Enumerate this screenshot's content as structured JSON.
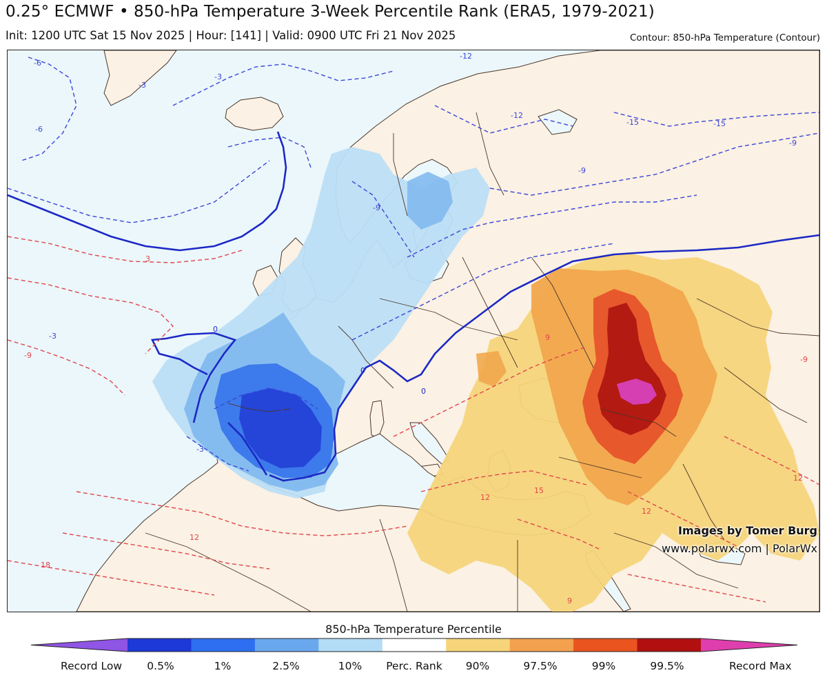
{
  "header": {
    "title": "0.25° ECMWF • 850-hPa Temperature 3-Week Percentile Rank (ERA5, 1979-2021)",
    "subtitle": "Init: 1200 UTC Sat 15 Nov 2025 | Hour: [141] | Valid: 0900 UTC Fri 21 Nov 2025",
    "contour_note": "Contour: 850-hPa Temperature (Contour)"
  },
  "credit": {
    "line1": "Images by Tomer Burg",
    "line2": "www.polarwx.com | PolarWx"
  },
  "colorbar": {
    "title": "850-hPa Temperature Percentile",
    "colors": [
      "#8f55e4",
      "#1d39d8",
      "#2e6ff2",
      "#6aa8ee",
      "#b3dcf6",
      "#ffffff",
      "#f6d47a",
      "#f3a14f",
      "#e9541f",
      "#b21010",
      "#df3fae"
    ],
    "labels": [
      "Record Low",
      "0.5%",
      "1%",
      "2.5%",
      "10%",
      "Perc. Rank",
      "90%",
      "97.5%",
      "99%",
      "99.5%",
      "Record Max"
    ]
  },
  "contours": {
    "cold_color": "#3a45d6",
    "warm_color": "#e0454a",
    "zero_color": "#1c28c4",
    "labels": [
      "-6",
      "-3",
      "-3",
      "-6",
      "-9",
      "-12",
      "-12",
      "-15",
      "-15",
      "-9",
      "-9",
      "0",
      "0",
      "0",
      "-3",
      "-3",
      "3",
      "-9",
      "-9",
      "-3",
      "9",
      "12",
      "12",
      "12",
      "12",
      "15",
      "18",
      "9"
    ]
  },
  "map_colors": {
    "ocean": "#ebf7fb",
    "land": "#fbf1e4",
    "cold_light": "#bcdef6",
    "cold_mid": "#82b9ee",
    "cold_strong": "#3d7aeb",
    "cold_core": "#2445d8",
    "warm_light": "#f6d47a",
    "warm_mid": "#f1a74c",
    "warm_strong": "#e6532a",
    "warm_core": "#b31a12",
    "warm_max": "#d63fb1",
    "border": "#4a3528"
  }
}
